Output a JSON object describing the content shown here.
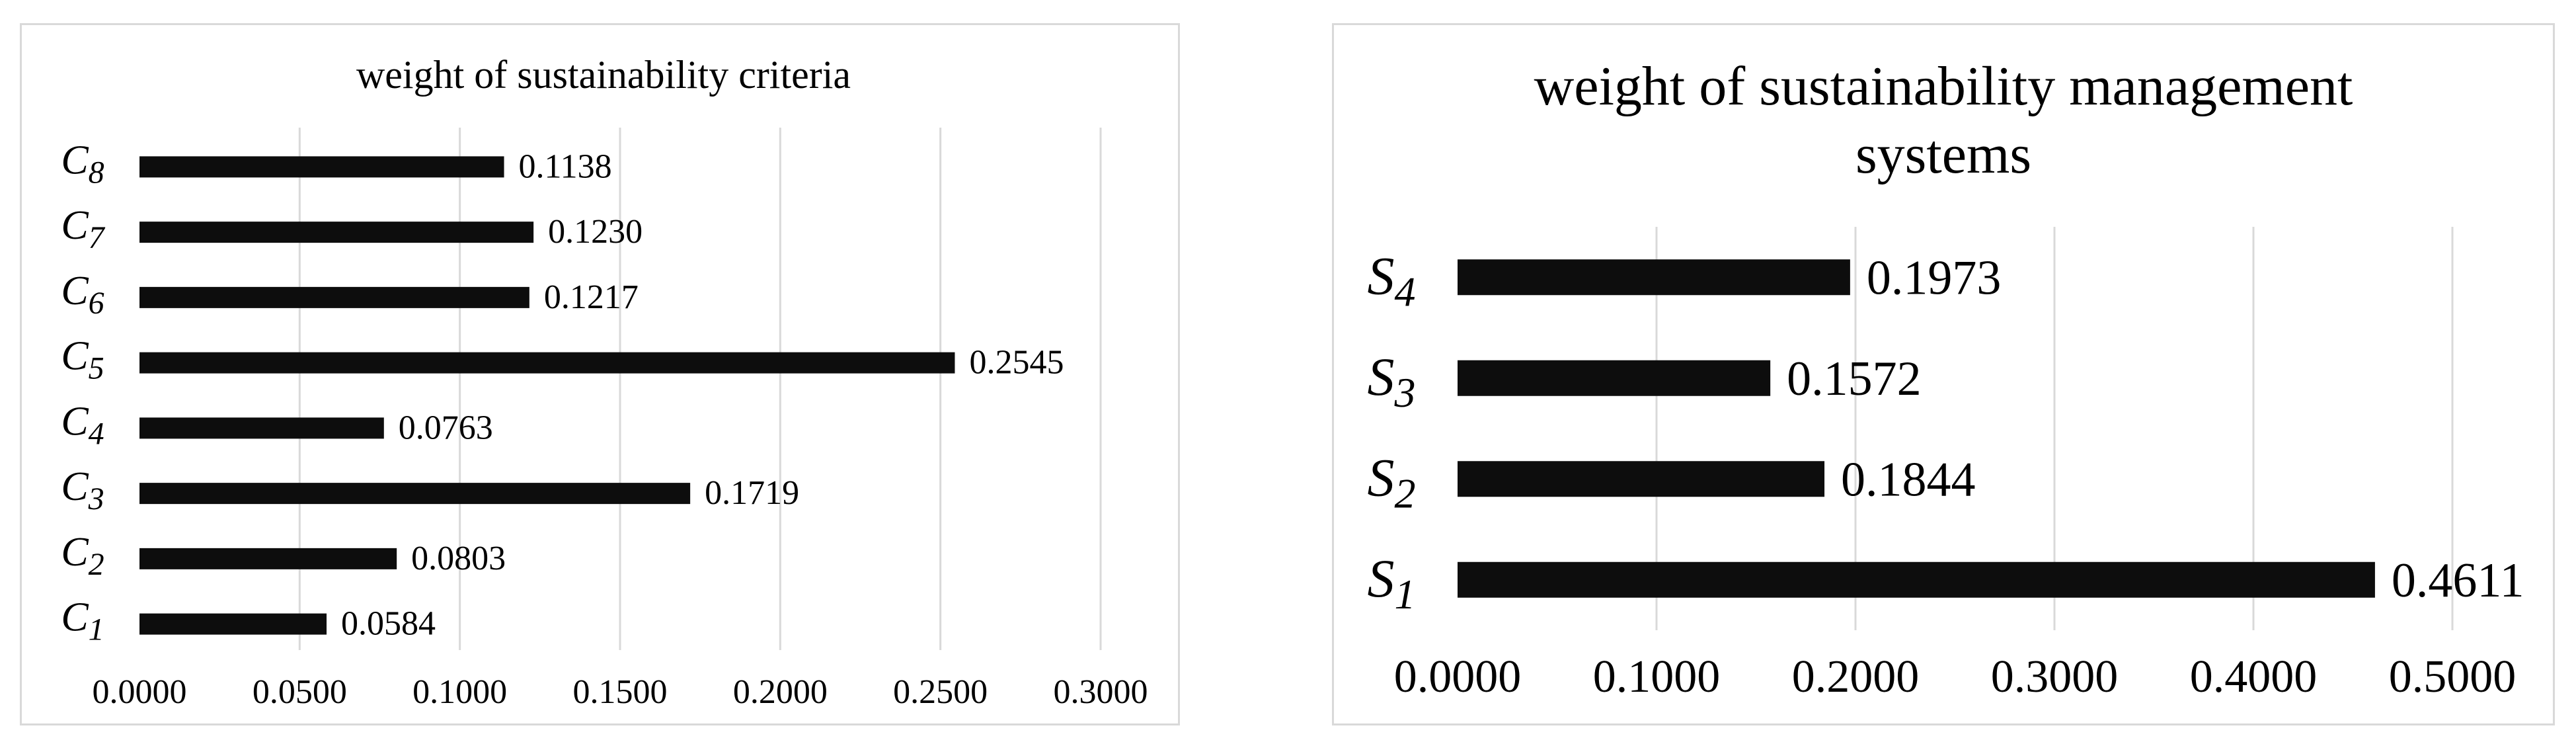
{
  "chart_data": [
    {
      "type": "bar",
      "orientation": "horizontal",
      "title": "weight of sustainability criteria",
      "categories": [
        {
          "base": "C",
          "sub": "1"
        },
        {
          "base": "C",
          "sub": "2"
        },
        {
          "base": "C",
          "sub": "3"
        },
        {
          "base": "C",
          "sub": "4"
        },
        {
          "base": "C",
          "sub": "5"
        },
        {
          "base": "C",
          "sub": "6"
        },
        {
          "base": "C",
          "sub": "7"
        },
        {
          "base": "C",
          "sub": "8"
        }
      ],
      "values": [
        0.0584,
        0.0803,
        0.1719,
        0.0763,
        0.2545,
        0.1217,
        0.123,
        0.1138
      ],
      "value_labels": [
        "0.0584",
        "0.0803",
        "0.1719",
        "0.0763",
        "0.2545",
        "0.1217",
        "0.1230",
        "0.1138"
      ],
      "xlim": [
        0,
        0.3
      ],
      "xticks": [
        0,
        0.05,
        0.1,
        0.15,
        0.2,
        0.25,
        0.3
      ],
      "xtick_labels": [
        "0.0000",
        "0.0500",
        "0.1000",
        "0.1500",
        "0.2000",
        "0.2500",
        "0.3000"
      ],
      "grid": "vertical",
      "legend": "none",
      "bar_color": "#0d0d0d",
      "grid_color": "#d9d9d9"
    },
    {
      "type": "bar",
      "orientation": "horizontal",
      "title_lines": [
        "weight of sustainability management",
        "systems"
      ],
      "categories": [
        {
          "base": "S",
          "sub": "1"
        },
        {
          "base": "S",
          "sub": "2"
        },
        {
          "base": "S",
          "sub": "3"
        },
        {
          "base": "S",
          "sub": "4"
        }
      ],
      "values": [
        0.4611,
        0.1844,
        0.1572,
        0.1973
      ],
      "value_labels": [
        "0.4611",
        "0.1844",
        "0.1572",
        "0.1973"
      ],
      "xlim": [
        0,
        0.5
      ],
      "xticks": [
        0,
        0.1,
        0.2,
        0.3,
        0.4,
        0.5
      ],
      "xtick_labels": [
        "0.0000",
        "0.1000",
        "0.2000",
        "0.3000",
        "0.4000",
        "0.5000"
      ],
      "grid": "vertical",
      "legend": "none",
      "bar_color": "#0d0d0d",
      "grid_color": "#d9d9d9"
    }
  ]
}
